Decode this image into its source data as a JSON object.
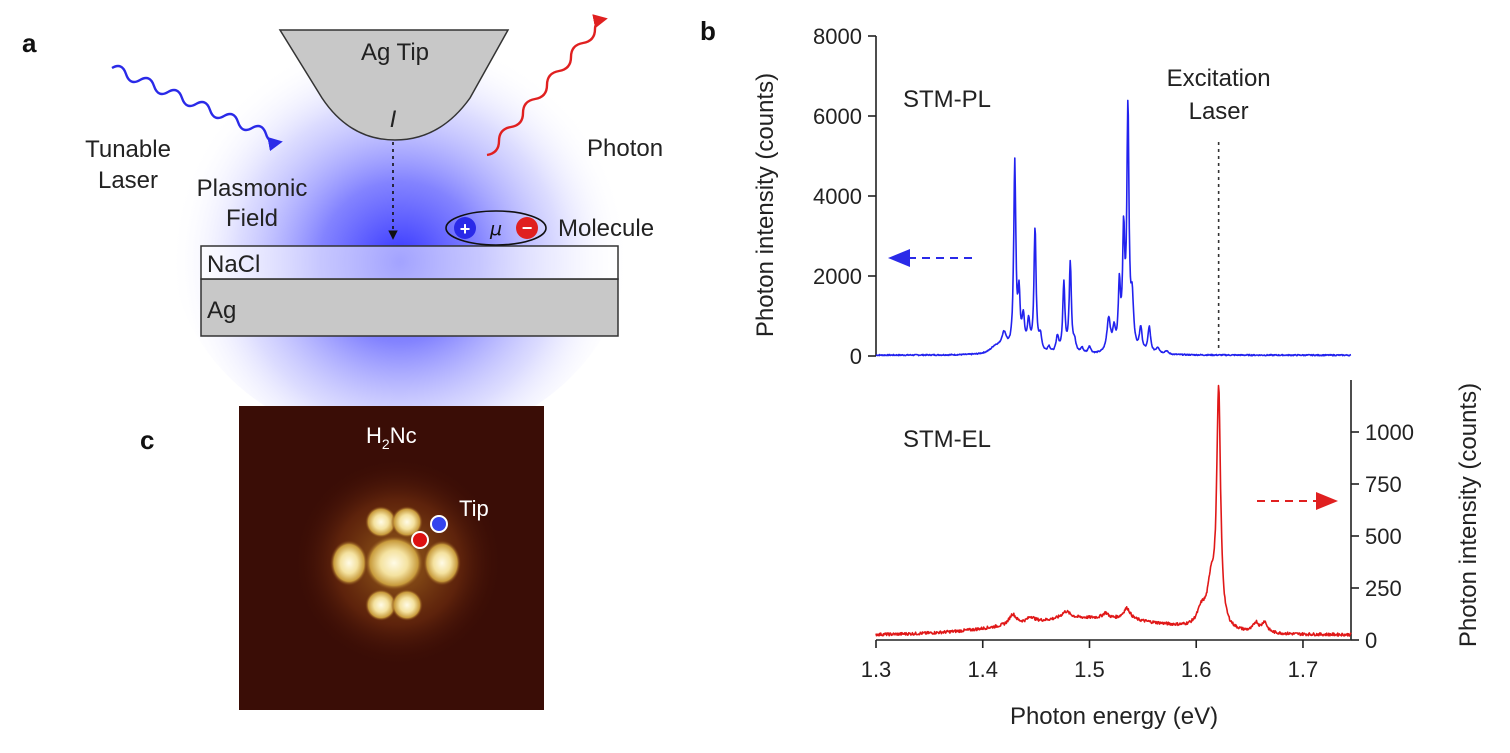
{
  "panels": {
    "a": "a",
    "b": "b",
    "c": "c"
  },
  "panel_a": {
    "tip_label": "Ag Tip",
    "current_label": "I",
    "laser_label_1": "Tunable",
    "laser_label_2": "Laser",
    "photon_label": "Photon",
    "field_label_1": "Plasmonic",
    "field_label_2": "Field",
    "molecule_label": "Molecule",
    "dipole_label": "μ",
    "plus_sign": "+",
    "minus_sign": "−",
    "nacl_label": "NaCl",
    "ag_label": "Ag",
    "colors": {
      "laser": "#2a2ae8",
      "photon": "#e02020",
      "tip": "#c8c8c8",
      "field": "#3333ff"
    }
  },
  "panel_c": {
    "molecule_name_main": "H",
    "molecule_name_sub": "2",
    "molecule_name_tail": "Nc",
    "tip_label": "Tip",
    "colors": {
      "background": "#3a0d06",
      "lobe": "#f4e2a0",
      "blue_marker": "#3344ee",
      "red_marker": "#dd1111"
    }
  },
  "chart_data": {
    "type": "line",
    "xlabel": "Photon energy (eV)",
    "xlim": [
      1.3,
      1.745
    ],
    "x_ticks": [
      "1.3",
      "1.4",
      "1.5",
      "1.6",
      "1.7"
    ],
    "excitation_label_1": "Excitation",
    "excitation_label_2": "Laser",
    "excitation_energy": 1.621,
    "series": [
      {
        "name": "STM-PL",
        "color": "#2222ee",
        "axis": "left",
        "ylabel": "Photon intensity (counts)",
        "ylim": [
          0,
          8000
        ],
        "y_ticks": [
          "0",
          "2000",
          "4000",
          "6000",
          "8000"
        ],
        "baseline": 20,
        "x_range": [
          1.3,
          1.745
        ],
        "peaks": [
          {
            "x": 1.412,
            "h": 180,
            "w": 0.006
          },
          {
            "x": 1.42,
            "h": 450,
            "w": 0.003
          },
          {
            "x": 1.43,
            "h": 4700,
            "w": 0.0012
          },
          {
            "x": 1.434,
            "h": 1300,
            "w": 0.0012
          },
          {
            "x": 1.438,
            "h": 800,
            "w": 0.0015
          },
          {
            "x": 1.443,
            "h": 720,
            "w": 0.0015
          },
          {
            "x": 1.449,
            "h": 3100,
            "w": 0.0012
          },
          {
            "x": 1.454,
            "h": 400,
            "w": 0.0015
          },
          {
            "x": 1.462,
            "h": 150,
            "w": 0.0015
          },
          {
            "x": 1.47,
            "h": 400,
            "w": 0.0015
          },
          {
            "x": 1.476,
            "h": 1750,
            "w": 0.0012
          },
          {
            "x": 1.482,
            "h": 2250,
            "w": 0.0012
          },
          {
            "x": 1.486,
            "h": 250,
            "w": 0.0015
          },
          {
            "x": 1.493,
            "h": 130,
            "w": 0.0015
          },
          {
            "x": 1.5,
            "h": 180,
            "w": 0.0015
          },
          {
            "x": 1.518,
            "h": 850,
            "w": 0.002
          },
          {
            "x": 1.523,
            "h": 500,
            "w": 0.0015
          },
          {
            "x": 1.528,
            "h": 1600,
            "w": 0.0012
          },
          {
            "x": 1.532,
            "h": 2800,
            "w": 0.0012
          },
          {
            "x": 1.536,
            "h": 6000,
            "w": 0.0012
          },
          {
            "x": 1.54,
            "h": 1200,
            "w": 0.0015
          },
          {
            "x": 1.548,
            "h": 600,
            "w": 0.0015
          },
          {
            "x": 1.556,
            "h": 650,
            "w": 0.0015
          },
          {
            "x": 1.564,
            "h": 150,
            "w": 0.002
          },
          {
            "x": 1.572,
            "h": 80,
            "w": 0.002
          }
        ]
      },
      {
        "name": "STM-EL",
        "color": "#e01818",
        "axis": "right",
        "ylabel": "Photon intensity (counts)",
        "ylim": [
          0,
          1250
        ],
        "y_ticks": [
          "0",
          "250",
          "500",
          "750",
          "1000"
        ],
        "baseline": 25,
        "slope": 80,
        "x_range": [
          1.3,
          1.745
        ],
        "peaks": [
          {
            "x": 1.428,
            "h": 50,
            "w": 0.004
          },
          {
            "x": 1.445,
            "h": 25,
            "w": 0.004
          },
          {
            "x": 1.478,
            "h": 35,
            "w": 0.005
          },
          {
            "x": 1.515,
            "h": 25,
            "w": 0.003
          },
          {
            "x": 1.535,
            "h": 55,
            "w": 0.004
          },
          {
            "x": 1.605,
            "h": 80,
            "w": 0.005
          },
          {
            "x": 1.614,
            "h": 200,
            "w": 0.004
          },
          {
            "x": 1.621,
            "h": 1120,
            "w": 0.0022
          },
          {
            "x": 1.656,
            "h": 45,
            "w": 0.003
          },
          {
            "x": 1.664,
            "h": 50,
            "w": 0.003
          }
        ]
      }
    ]
  }
}
